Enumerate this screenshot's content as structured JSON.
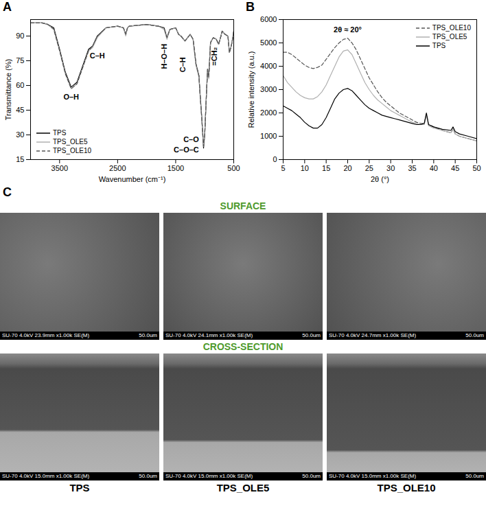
{
  "chart_data": [
    {
      "type": "line",
      "panel_label": "A",
      "x_label": "Wavenumber (cm⁻¹)",
      "y_label": "Transmittance (%)",
      "x": [
        4000,
        3800,
        3700,
        3600,
        3500,
        3400,
        3300,
        3200,
        3100,
        3000,
        2930,
        2850,
        2700,
        2500,
        2400,
        2360,
        2330,
        2300,
        2000,
        1800,
        1700,
        1650,
        1600,
        1500,
        1450,
        1410,
        1340,
        1250,
        1200,
        1150,
        1100,
        1080,
        1050,
        1020,
        1000,
        970,
        950,
        930,
        900,
        870,
        850,
        800,
        760,
        720,
        700,
        650,
        600,
        575,
        550,
        530,
        500
      ],
      "series": [
        {
          "name": "TPS",
          "color": "#000000",
          "line_style": "solid",
          "values": [
            98,
            98,
            97,
            95,
            82,
            68,
            59,
            62,
            72,
            82,
            84,
            90,
            95,
            96,
            95,
            91,
            95,
            96,
            97,
            96,
            95,
            89,
            94,
            95,
            91,
            90,
            87,
            91,
            88,
            73,
            66,
            55,
            40,
            22,
            30,
            55,
            70,
            65,
            86,
            88,
            89,
            88,
            85,
            90,
            93,
            91,
            90,
            80,
            83,
            86,
            93
          ]
        },
        {
          "name": "TPS_OLE5",
          "color": "#b0b0b0",
          "line_style": "solid",
          "values": [
            98,
            98,
            97,
            94,
            81,
            67,
            58,
            61,
            71,
            81,
            83,
            89,
            95,
            96,
            95,
            90,
            95,
            96,
            97,
            96,
            94,
            88,
            94,
            95,
            91,
            90,
            87,
            91,
            88,
            72,
            65,
            54,
            39,
            23,
            31,
            55,
            70,
            64,
            86,
            88,
            89,
            88,
            85,
            90,
            93,
            91,
            90,
            80,
            83,
            86,
            93
          ]
        },
        {
          "name": "TPS_OLE10",
          "color": "#555555",
          "line_style": "dashed",
          "values": [
            98,
            98,
            97,
            94,
            81,
            67,
            58,
            61,
            71,
            81,
            84,
            90,
            95,
            96,
            95,
            91,
            95,
            96,
            97,
            96,
            95,
            89,
            94,
            95,
            91,
            90,
            87,
            91,
            88,
            73,
            66,
            55,
            40,
            23,
            30,
            55,
            70,
            65,
            86,
            88,
            89,
            88,
            85,
            90,
            93,
            91,
            90,
            80,
            83,
            86,
            93
          ]
        }
      ],
      "xlim": [
        4000,
        500
      ],
      "xticks": [
        3500,
        2500,
        1500,
        500
      ],
      "ylim": [
        15,
        100
      ],
      "yticks": [
        15,
        30,
        45,
        60,
        75,
        90
      ],
      "grid": false,
      "legend": "bottom-left",
      "annotations": [
        {
          "text": "O–H",
          "x": 3300,
          "y": 53
        },
        {
          "text": "C–H",
          "x": 2850,
          "y": 78
        },
        {
          "text": "H–O–H",
          "x": 1700,
          "y": 70
        },
        {
          "text": "C–H",
          "x": 1380,
          "y": 68
        },
        {
          "text": "=CH₂",
          "x": 830,
          "y": 72
        },
        {
          "text": "C–O",
          "x": 1100,
          "y": 27
        },
        {
          "text": "C–O–C",
          "x": 1100,
          "y": 21
        }
      ]
    },
    {
      "type": "line",
      "panel_label": "B",
      "x_label": "2θ (°)",
      "y_label": "Relative intensity (a.u.)",
      "x": [
        5,
        6,
        7,
        8,
        9,
        10,
        11,
        12,
        13,
        14,
        15,
        16,
        17,
        18,
        19,
        20,
        21,
        22,
        23,
        24,
        25,
        26,
        27,
        28,
        29,
        30,
        31,
        32,
        33,
        34,
        35,
        36,
        37,
        37.8,
        38.3,
        38.8,
        40,
        42,
        44,
        44.5,
        45,
        46,
        48,
        50
      ],
      "series": [
        {
          "name": "TPS_OLE10",
          "color": "#555555",
          "line_style": "dashed",
          "values": [
            4600,
            4600,
            4500,
            4350,
            4200,
            4050,
            3950,
            3900,
            3950,
            4050,
            4300,
            4550,
            4800,
            5000,
            5150,
            5200,
            5000,
            4700,
            4300,
            3900,
            3500,
            3200,
            2900,
            2650,
            2450,
            2300,
            2150,
            2000,
            1900,
            1800,
            1700,
            1600,
            1550,
            1550,
            1950,
            1500,
            1400,
            1250,
            1150,
            1300,
            1100,
            1000,
            900,
            800
          ]
        },
        {
          "name": "TPS_OLE5",
          "color": "#b0b0b0",
          "line_style": "solid",
          "values": [
            3600,
            3300,
            3100,
            2900,
            2750,
            2650,
            2600,
            2600,
            2700,
            2900,
            3200,
            3600,
            4000,
            4400,
            4650,
            4700,
            4500,
            4100,
            3700,
            3300,
            3000,
            2750,
            2550,
            2400,
            2250,
            2100,
            2000,
            1900,
            1800,
            1700,
            1600,
            1550,
            1500,
            1500,
            1900,
            1450,
            1350,
            1250,
            1150,
            1300,
            1100,
            1000,
            900,
            800
          ]
        },
        {
          "name": "TPS",
          "color": "#000000",
          "line_style": "solid",
          "values": [
            2300,
            2200,
            2100,
            1950,
            1800,
            1600,
            1450,
            1350,
            1350,
            1500,
            1800,
            2200,
            2600,
            2850,
            3000,
            3050,
            2950,
            2750,
            2550,
            2350,
            2200,
            2100,
            2000,
            1900,
            1850,
            1800,
            1750,
            1700,
            1650,
            1600,
            1550,
            1500,
            1500,
            1550,
            2000,
            1500,
            1400,
            1300,
            1250,
            1400,
            1200,
            1100,
            1000,
            900
          ]
        }
      ],
      "xlim": [
        5,
        50
      ],
      "xticks": [
        5,
        10,
        15,
        20,
        25,
        30,
        35,
        40,
        45,
        50
      ],
      "ylim": [
        0,
        6000
      ],
      "yticks": [
        0,
        1000,
        2000,
        3000,
        4000,
        5000,
        6000
      ],
      "grid": false,
      "legend": "top-right",
      "annotations": [
        {
          "text": "2θ ≈ 20°",
          "x": 20,
          "y": 5550
        }
      ]
    }
  ],
  "panel_c": {
    "panel_label": "C",
    "columns": [
      "TPS",
      "TPS_OLE5",
      "TPS_OLE10"
    ],
    "rows": [
      {
        "title": "SURFACE",
        "color": "#4e9a2c",
        "images": [
          {
            "info": "SU-70 4.0kV 23.9mm x1.00k SE(M)",
            "scale": "50.0um"
          },
          {
            "info": "SU-70 4.0kV 24.1mm x1.00k SE(M)",
            "scale": "50.0um"
          },
          {
            "info": "SU-70 4.0kV 24.7mm x1.00k SE(M)",
            "scale": "50.0um"
          }
        ]
      },
      {
        "title": "CROSS-SECTION",
        "color": "#4e9a2c",
        "images": [
          {
            "info": "SU-70 4.0kV 15.0mm x1.00k SE(M)",
            "scale": "50.0um"
          },
          {
            "info": "SU-70 4.0kV 15.0mm x1.00k SE(M)",
            "scale": "50.0um"
          },
          {
            "info": "SU-70 4.0kV 15.0mm x1.00k SE(M)",
            "scale": "50.0um"
          }
        ]
      }
    ]
  }
}
